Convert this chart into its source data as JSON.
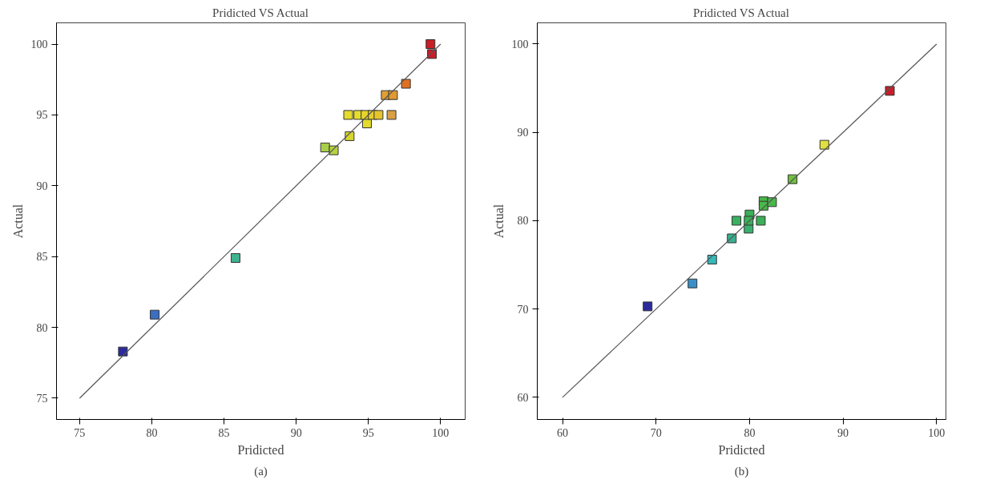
{
  "chart_data": [
    {
      "type": "scatter",
      "title": "Pridicted VS Actual",
      "xlabel": "Pridicted",
      "ylabel": "Actual",
      "annotations": [
        "(a)"
      ],
      "grid": false,
      "xlim": [
        73.4,
        101.7
      ],
      "ylim": [
        73.5,
        101.5
      ],
      "xticks": [
        75,
        80,
        85,
        90,
        95,
        100
      ],
      "yticks": [
        75,
        80,
        85,
        90,
        95,
        100
      ],
      "series": [
        {
          "marker": "square",
          "x": [
            78.0,
            80.2,
            85.8,
            92.0,
            92.6,
            93.7,
            94.9,
            93.6,
            94.3,
            94.8,
            95.3,
            95.7,
            96.6,
            96.2,
            96.7,
            97.6,
            99.3,
            99.4
          ],
          "values": [
            78.3,
            80.9,
            84.9,
            92.7,
            92.5,
            93.5,
            94.4,
            95.0,
            95.0,
            95.0,
            95.0,
            95.0,
            95.0,
            96.4,
            96.4,
            97.2,
            100.0,
            99.3
          ],
          "colors": [
            "#2b2b9c",
            "#3a6fc2",
            "#3fb28f",
            "#a8cf45",
            "#b5d340",
            "#d6d62e",
            "#e2da2c",
            "#e6dc2c",
            "#e6dc2c",
            "#e6d42c",
            "#e6cc2c",
            "#e6c42c",
            "#d9a048",
            "#e0a035",
            "#e09a30",
            "#e07020",
            "#c81e28",
            "#c81e28"
          ]
        },
        {
          "type": "line",
          "color": "#555555",
          "x": [
            75,
            100
          ],
          "values": [
            75,
            100
          ]
        }
      ]
    },
    {
      "type": "scatter",
      "title": "Pridicted VS Actual",
      "xlabel": "Pridicted",
      "ylabel": "Actual",
      "annotations": [
        "(b)"
      ],
      "grid": false,
      "xlim": [
        57.3,
        101
      ],
      "ylim": [
        57.5,
        102.4
      ],
      "xticks": [
        60,
        70,
        80,
        90,
        100
      ],
      "yticks": [
        60,
        70,
        80,
        90,
        100
      ],
      "series": [
        {
          "marker": "square",
          "x": [
            69.1,
            73.9,
            76.0,
            78.1,
            79.9,
            78.6,
            80.0,
            79.9,
            81.2,
            81.5,
            81.5,
            82.4,
            84.6,
            88.0,
            95.0
          ],
          "values": [
            70.3,
            72.9,
            75.6,
            78.0,
            79.1,
            80.0,
            80.7,
            80.0,
            80.0,
            82.2,
            81.7,
            82.1,
            84.7,
            88.6,
            94.7
          ],
          "colors": [
            "#2b2b9c",
            "#3a8fc8",
            "#35b8b8",
            "#38b090",
            "#3ab070",
            "#3ab060",
            "#3ab058",
            "#3ab058",
            "#3ab058",
            "#48b848",
            "#48b848",
            "#48b848",
            "#70c040",
            "#e0e040",
            "#c81e28"
          ]
        },
        {
          "type": "line",
          "color": "#555555",
          "x": [
            60,
            100
          ],
          "values": [
            60,
            100
          ]
        }
      ]
    }
  ]
}
